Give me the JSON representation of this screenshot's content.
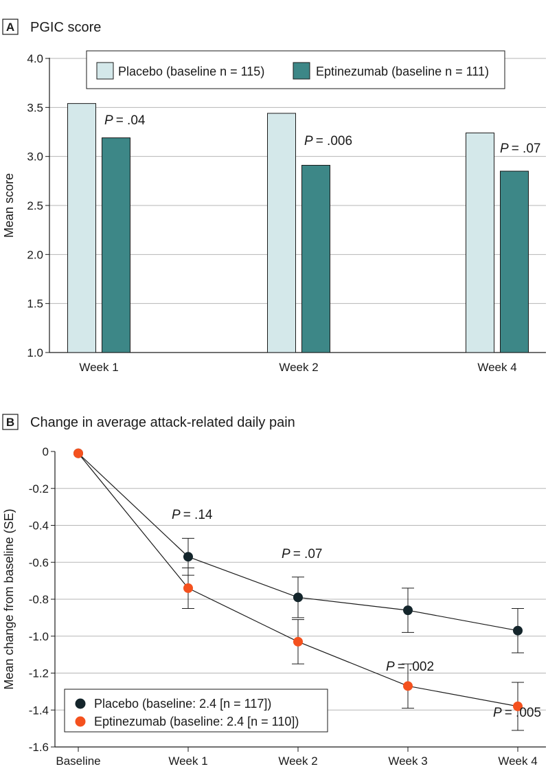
{
  "chart_data": [
    {
      "panel": "A",
      "type": "bar",
      "title": "PGIC score",
      "xlabel": "",
      "ylabel": "Mean score",
      "ylim": [
        1.0,
        4.0
      ],
      "yticks": [
        "1.0",
        "1.5",
        "2.0",
        "2.5",
        "3.0",
        "3.5",
        "4.0"
      ],
      "grid": true,
      "legend_position": "top",
      "categories": [
        "Week 1",
        "Week 2",
        "Week 4"
      ],
      "series": [
        {
          "name": "Placebo (baseline n = 115)",
          "color": "#d4e8ea",
          "values": [
            3.54,
            3.44,
            3.24
          ]
        },
        {
          "name": "Eptinezumab (baseline n = 111)",
          "color": "#3d8787",
          "values": [
            3.19,
            2.91,
            2.85
          ]
        }
      ],
      "annotations": [
        {
          "p": "P",
          "value": "= .04"
        },
        {
          "p": "P",
          "value": "= .006"
        },
        {
          "p": "P",
          "value": "= .07"
        }
      ]
    },
    {
      "panel": "B",
      "type": "line",
      "title": "Change in average attack-related daily pain",
      "xlabel": "",
      "ylabel": "Mean change from baseline (SE)",
      "ylim": [
        -1.6,
        0
      ],
      "yticks": [
        "0",
        "-0.2",
        "-0.4",
        "-0.6",
        "-0.8",
        "-1.0",
        "-1.2",
        "-1.4",
        "-1.6"
      ],
      "grid": true,
      "legend_position": "bottom-left",
      "categories": [
        "Baseline",
        "Week 1",
        "Week 2",
        "Week 3",
        "Week 4"
      ],
      "series": [
        {
          "name": "Placebo (baseline: 2.4  [n = 117])",
          "color": "#14252b",
          "values": [
            -0.01,
            -0.57,
            -0.79,
            -0.86,
            -0.97
          ],
          "se": [
            0,
            0.1,
            0.11,
            0.12,
            0.12
          ]
        },
        {
          "name": "Eptinezumab (baseline: 2.4  [n = 110])",
          "color": "#f4511e",
          "values": [
            -0.01,
            -0.74,
            -1.03,
            -1.27,
            -1.38
          ],
          "se": [
            0,
            0.11,
            0.12,
            0.12,
            0.13
          ]
        }
      ],
      "annotations": [
        {
          "category": "Week 1",
          "p": "P",
          "value": "= .14"
        },
        {
          "category": "Week 2",
          "p": "P",
          "value": "= .07"
        },
        {
          "category": "Week 3",
          "p": "P",
          "value": "= .002"
        },
        {
          "category": "Week 4",
          "p": "P",
          "value": "= .005"
        }
      ]
    }
  ]
}
